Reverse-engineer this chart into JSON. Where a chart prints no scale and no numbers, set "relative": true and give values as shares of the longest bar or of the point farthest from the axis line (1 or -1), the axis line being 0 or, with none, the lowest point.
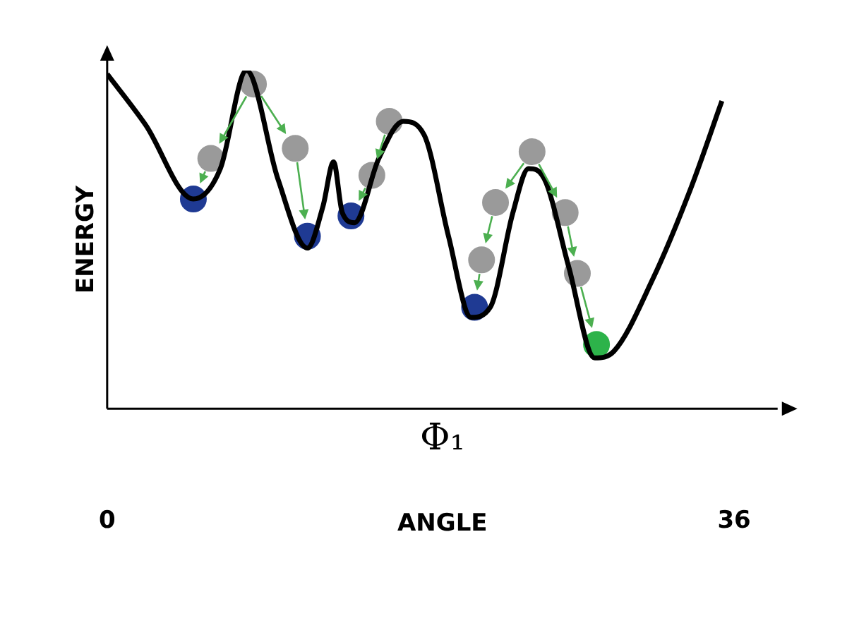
{
  "chart_data": {
    "type": "line",
    "ylabel": "ENERGY",
    "xlabel": "Φ₁",
    "annotations": [
      "ANGLE"
    ],
    "relative": true,
    "xlim": [
      0,
      38.5
    ],
    "xticks": [
      0,
      36
    ],
    "grid": false,
    "legend": false,
    "marker": "none",
    "line_style": "solid",
    "series": [
      {
        "type": "line",
        "color": "#000000",
        "x": [
          0,
          2.2,
          4.95,
          6.5,
          8.0,
          9.8,
          11.5,
          12.4,
          13.0,
          13.5,
          14.2,
          15.6,
          17.0,
          18.2,
          19.6,
          20.9,
          22.0,
          23.3,
          24.2,
          25.1,
          26.5,
          28.0,
          29.1,
          31.3,
          33.5,
          35.3
        ],
        "values": [
          0.99,
          0.84,
          0.62,
          0.71,
          1.0,
          0.68,
          0.475,
          0.6,
          0.73,
          0.58,
          0.55,
          0.74,
          0.85,
          0.81,
          0.51,
          0.27,
          0.3,
          0.58,
          0.71,
          0.68,
          0.42,
          0.15,
          0.17,
          0.38,
          0.65,
          0.91
        ]
      },
      {
        "type": "scatter",
        "marker": "circle",
        "color": "#9a9a9a",
        "x": [
          8.4,
          5.95,
          10.8,
          15.2,
          16.2,
          21.5,
          22.3,
          24.4,
          26.3,
          27.0
        ],
        "values": [
          0.96,
          0.74,
          0.77,
          0.69,
          0.85,
          0.44,
          0.61,
          0.76,
          0.58,
          0.4
        ]
      },
      {
        "type": "scatter",
        "marker": "circle",
        "color": "#1f3a93",
        "x": [
          4.95,
          11.5,
          14.0,
          21.1
        ],
        "values": [
          0.62,
          0.51,
          0.57,
          0.3
        ]
      },
      {
        "type": "scatter",
        "marker": "circle",
        "color": "#2db34a",
        "x": [
          28.1
        ],
        "values": [
          0.19
        ]
      }
    ]
  }
}
